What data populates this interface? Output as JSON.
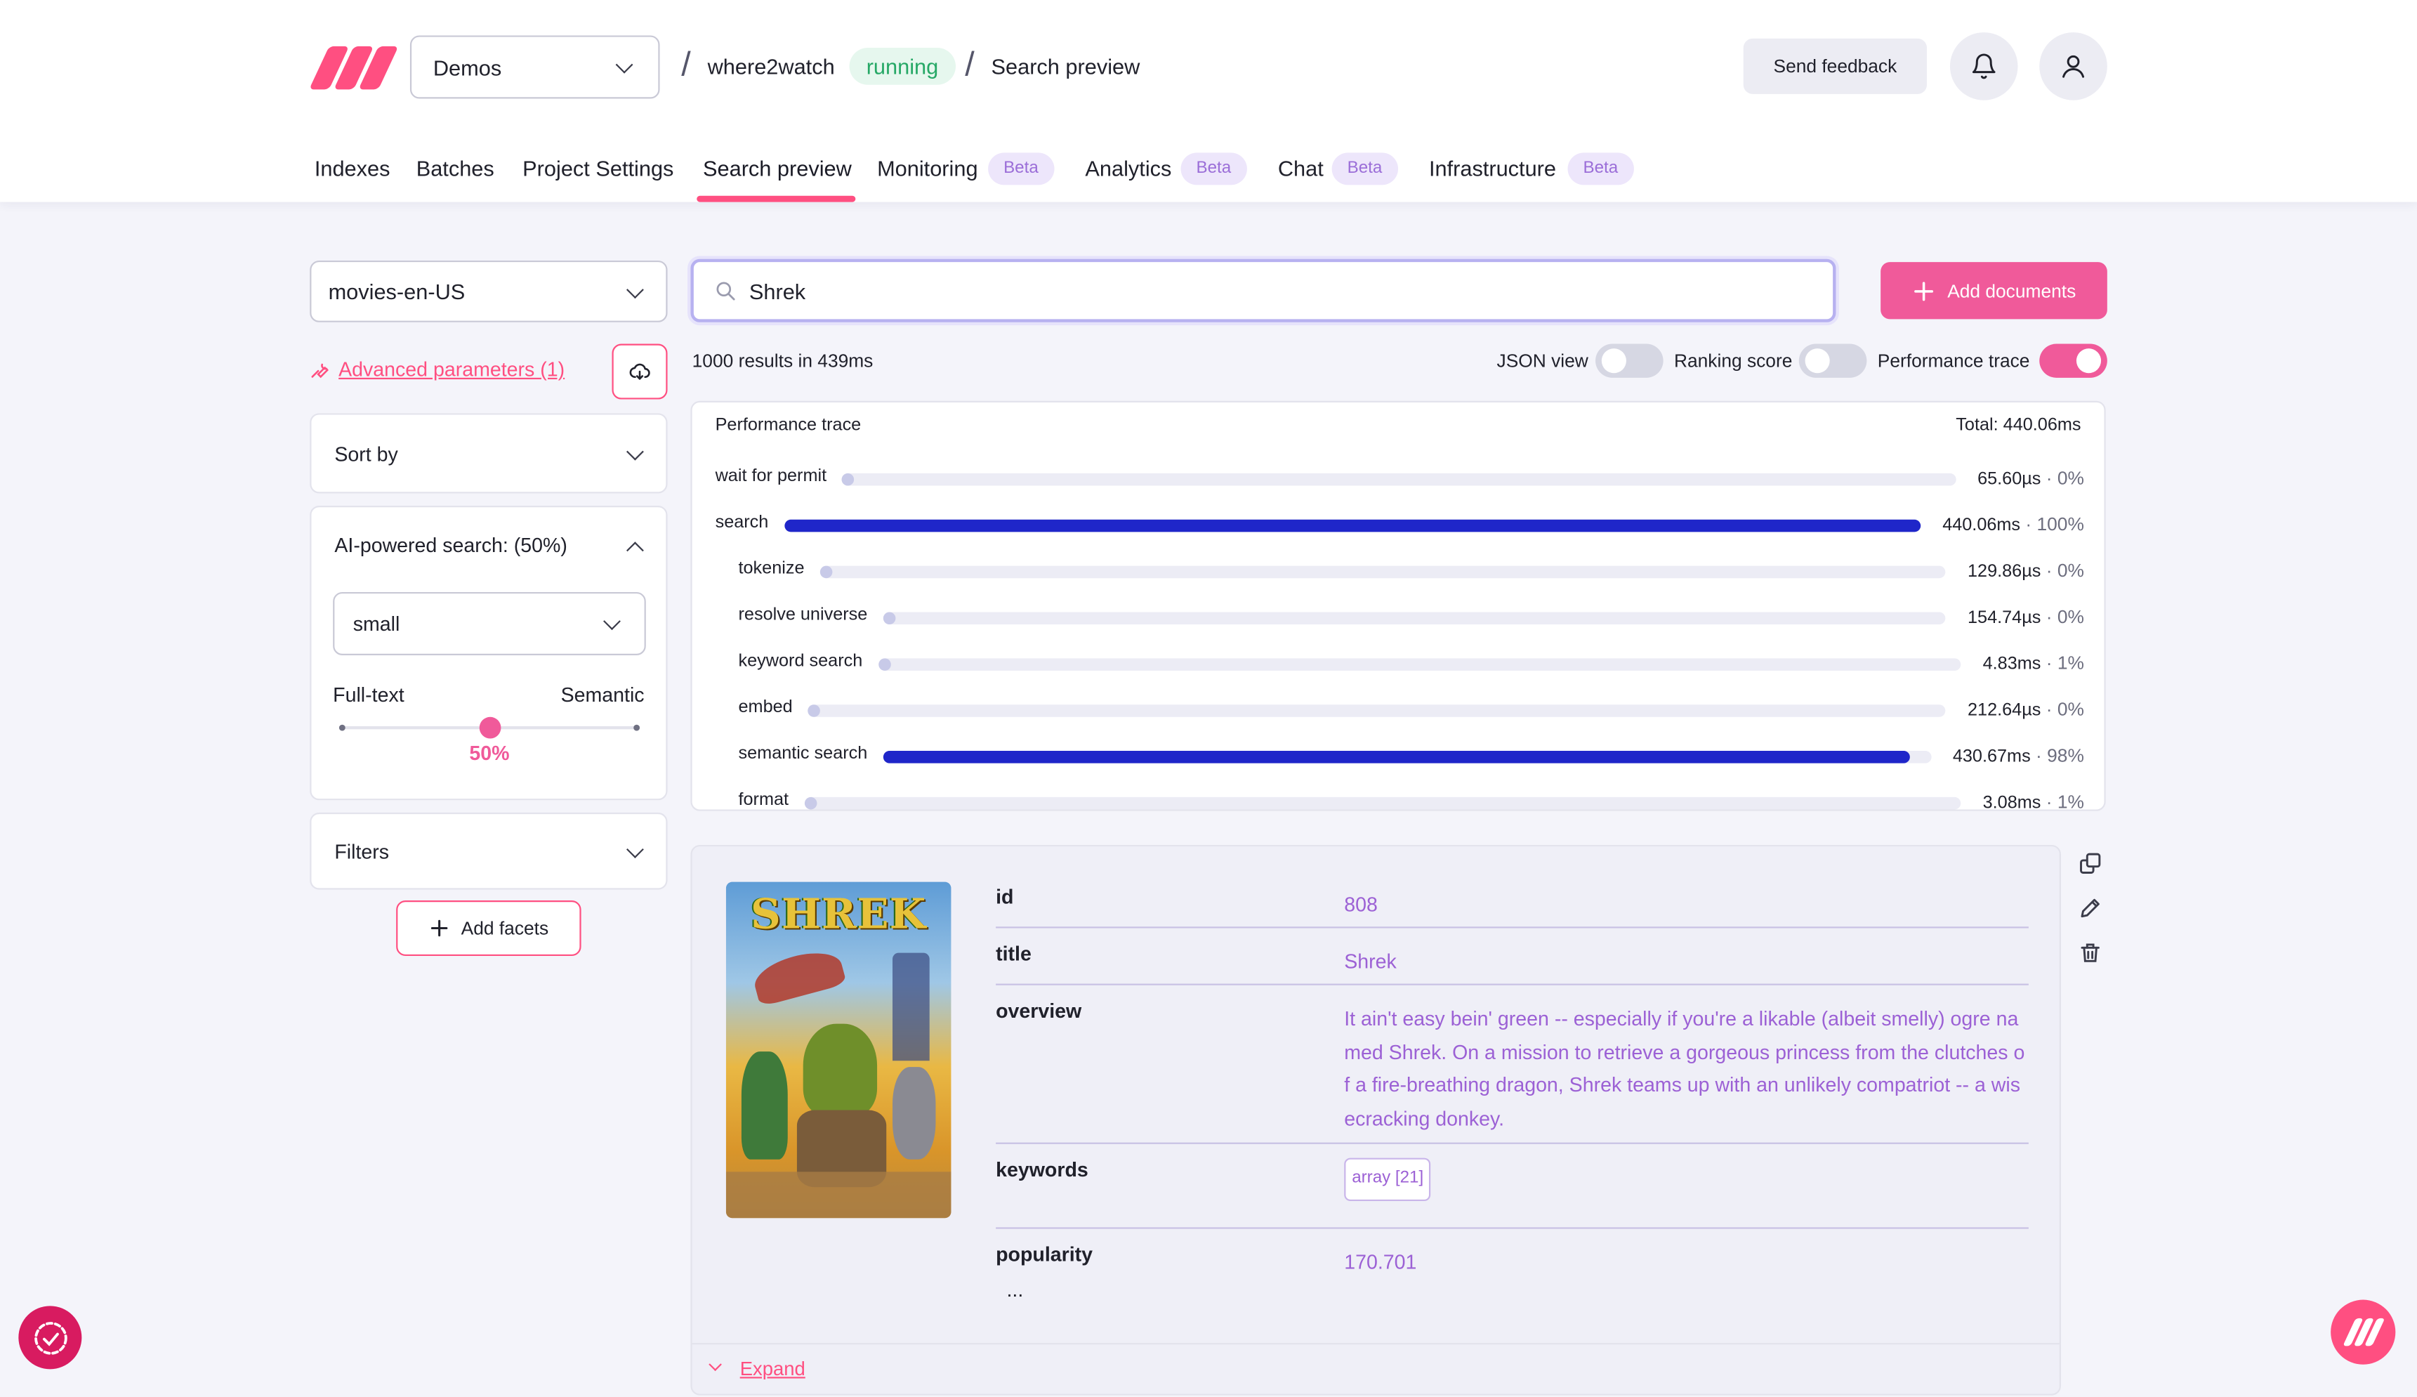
{
  "header": {
    "project_selector": "Demos",
    "breadcrumb_index": "where2watch",
    "status_badge": "running",
    "breadcrumb_page": "Search preview",
    "feedback_label": "Send feedback",
    "brand_color": "#ff4f81"
  },
  "tabs": [
    {
      "label": "Indexes"
    },
    {
      "label": "Batches"
    },
    {
      "label": "Project Settings"
    },
    {
      "label": "Search preview",
      "active": true
    },
    {
      "label": "Monitoring",
      "badge": "Beta"
    },
    {
      "label": "Analytics",
      "badge": "Beta"
    },
    {
      "label": "Chat",
      "badge": "Beta"
    },
    {
      "label": "Infrastructure",
      "badge": "Beta"
    }
  ],
  "sidebar": {
    "index_selector": "movies-en-US",
    "advanced_params": "Advanced parameters (1)",
    "sort_by": "Sort by",
    "ai_search": {
      "title": "AI-powered search: (50%)",
      "model": "small",
      "left_label": "Full-text",
      "right_label": "Semantic",
      "value_label": "50%",
      "value": 0.5
    },
    "filters": "Filters",
    "add_facets": "Add facets"
  },
  "search": {
    "query": "Shrek",
    "add_documents": "Add documents",
    "results_summary": "1000 results in 439ms",
    "toggles": {
      "json_view": {
        "label": "JSON view",
        "on": false
      },
      "ranking_score": {
        "label": "Ranking score",
        "on": false
      },
      "performance_trace": {
        "label": "Performance trace",
        "on": true
      }
    }
  },
  "perf_trace": {
    "title": "Performance trace",
    "total": "Total: 440.06ms",
    "steps": [
      {
        "name": "wait for permit",
        "value": "65.60µs",
        "pct_label": "0%",
        "fraction": 0.0,
        "level": 0
      },
      {
        "name": "search",
        "value": "440.06ms",
        "pct_label": "100%",
        "fraction": 1.0,
        "level": 0
      },
      {
        "name": "tokenize",
        "value": "129.86µs",
        "pct_label": "0%",
        "fraction": 0.0,
        "level": 1
      },
      {
        "name": "resolve universe",
        "value": "154.74µs",
        "pct_label": "0%",
        "fraction": 0.0,
        "level": 1
      },
      {
        "name": "keyword search",
        "value": "4.83ms",
        "pct_label": "1%",
        "fraction": 0.01,
        "level": 1
      },
      {
        "name": "embed",
        "value": "212.64µs",
        "pct_label": "0%",
        "fraction": 0.0,
        "level": 1
      },
      {
        "name": "semantic search",
        "value": "430.67ms",
        "pct_label": "98%",
        "fraction": 0.98,
        "level": 1
      },
      {
        "name": "format",
        "value": "3.08ms",
        "pct_label": "1%",
        "fraction": 0.01,
        "level": 1
      }
    ]
  },
  "document": {
    "poster_title": "SHREK",
    "fields": [
      {
        "key": "id",
        "value": "808"
      },
      {
        "key": "title",
        "value": "Shrek"
      },
      {
        "key": "overview",
        "value": "It ain't easy bein' green -- especially if you're a likable (albeit smelly) ogre named Shrek. On a mission to retrieve a gorgeous princess from the clutches of a fire-breathing dragon, Shrek teams up with an unlikely compatriot -- a wisecracking donkey."
      },
      {
        "key": "keywords",
        "value": "array [21]"
      },
      {
        "key": "popularity",
        "value": "170.701"
      }
    ],
    "more": "...",
    "expand_label": "Expand"
  }
}
